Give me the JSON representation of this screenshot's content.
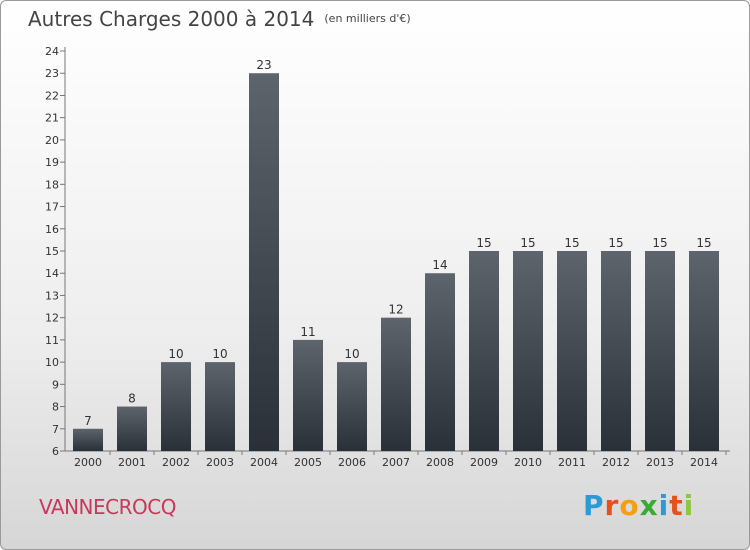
{
  "title": "Autres Charges 2000 à 2014",
  "unit_note": "(en milliers d'€)",
  "town": "VANNECROCQ",
  "logo": {
    "letters": [
      "P",
      "r",
      "o",
      "x",
      "i",
      "t",
      "i"
    ],
    "colors": [
      "#2c9ad6",
      "#e8501a",
      "#f3a00f",
      "#3aa935",
      "#2c9ad6",
      "#e8501a",
      "#8dc63f"
    ]
  },
  "chart_data": {
    "type": "bar",
    "title": "Autres Charges 2000 à 2014",
    "unit": "(en milliers d'€)",
    "categories": [
      "2000",
      "2001",
      "2002",
      "2003",
      "2004",
      "2005",
      "2006",
      "2007",
      "2008",
      "2009",
      "2010",
      "2011",
      "2012",
      "2013",
      "2014"
    ],
    "values": [
      7,
      8,
      10,
      10,
      23,
      11,
      10,
      12,
      14,
      15,
      15,
      15,
      15,
      15,
      15
    ],
    "ylim": [
      6,
      24
    ],
    "yticks": [
      6,
      7,
      8,
      9,
      10,
      11,
      12,
      13,
      14,
      15,
      16,
      17,
      18,
      19,
      20,
      21,
      22,
      23,
      24
    ],
    "grid": false,
    "bar_color": "#3a4048"
  }
}
